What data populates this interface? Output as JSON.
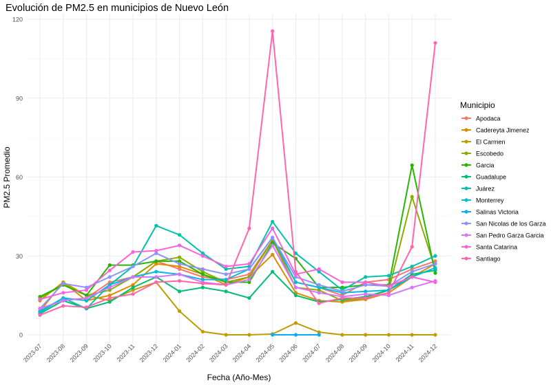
{
  "chart_data": {
    "type": "line",
    "title": "Evolución de PM2.5 en municipios de Nuevo León",
    "xlabel": "Fecha (Año-Mes)",
    "ylabel": "PM2.5 Promedio",
    "ylim": [
      0,
      120
    ],
    "yticks": [
      0,
      30,
      60,
      90,
      120
    ],
    "grid": true,
    "legend_title": "Municipio",
    "legend_position": "right",
    "categories": [
      "2023-07",
      "2023-08",
      "2023-09",
      "2023-10",
      "2023-11",
      "2023-12",
      "2024-01",
      "2024-02",
      "2024-03",
      "2024-04",
      "2024-05",
      "2024-06",
      "2024-07",
      "2024-08",
      "2024-09",
      "2024-10",
      "2024-11",
      "2024-12"
    ],
    "series": [
      {
        "name": "Apodaca",
        "color": "#F8766D",
        "values": [
          10,
          13,
          14,
          20,
          22,
          28,
          25,
          22,
          21,
          23,
          36,
          20,
          18,
          15,
          20,
          21,
          25,
          28
        ]
      },
      {
        "name": "Cadereyta Jimenez",
        "color": "#E18A00",
        "values": [
          9,
          20,
          13,
          15,
          19,
          27,
          26,
          23,
          19,
          22,
          30.5,
          16,
          13,
          12.5,
          13.5,
          16,
          22,
          27
        ]
      },
      {
        "name": "El Carmen",
        "color": "#BE9C00",
        "values": [
          13,
          20,
          15,
          13,
          17,
          20,
          9,
          1.2,
          0,
          0,
          0.3,
          4.5,
          1,
          0,
          0,
          0,
          0,
          0
        ]
      },
      {
        "name": "Escobedo",
        "color": "#8CAB00",
        "values": [
          14,
          19,
          15,
          17,
          22,
          28,
          29.5,
          24,
          20,
          22,
          36,
          18,
          17,
          13,
          14,
          17,
          52.5,
          25
        ]
      },
      {
        "name": "Garcia",
        "color": "#24B700",
        "values": [
          14.5,
          19,
          15,
          26.5,
          26.5,
          28,
          28,
          23,
          20,
          20,
          35,
          29,
          18,
          18,
          19,
          19,
          64.5,
          23.5
        ]
      },
      {
        "name": "Guadalupe",
        "color": "#00BE70",
        "values": [
          8,
          13,
          10,
          12.5,
          18,
          22,
          16.5,
          18,
          16.5,
          14,
          24,
          15,
          12.5,
          13.5,
          14.5,
          17,
          23,
          24.5
        ]
      },
      {
        "name": "Juárez",
        "color": "#00C1AB",
        "values": [
          9,
          14,
          10,
          19,
          26,
          41.5,
          38,
          31,
          25,
          26,
          43,
          31,
          24,
          17,
          22,
          22.5,
          26,
          30
        ]
      },
      {
        "name": "Monterrey",
        "color": "#00BBDA",
        "values": [
          8.5,
          14,
          13,
          19,
          22,
          24,
          23,
          21,
          21,
          25,
          37,
          20,
          18,
          16,
          16.5,
          17,
          22,
          25.5
        ]
      },
      {
        "name": "Salinas Victoria",
        "color": "#00ACFC",
        "values": [
          null,
          null,
          null,
          null,
          null,
          null,
          null,
          null,
          null,
          null,
          0,
          0,
          0,
          null,
          null,
          null,
          null,
          null
        ]
      },
      {
        "name": "San Nicolas de los Garza",
        "color": "#8B93FF",
        "values": [
          10,
          19.5,
          18,
          22,
          26,
          31,
          27,
          25,
          23,
          25,
          37,
          22,
          19,
          16.5,
          19,
          18.5,
          24,
          27
        ]
      },
      {
        "name": "San Pedro Garza Garcia",
        "color": "#D575FE",
        "values": [
          10,
          13,
          14,
          18,
          22,
          22,
          23,
          20,
          19,
          21,
          34,
          18,
          16,
          14.5,
          15.5,
          15,
          18,
          20.5
        ]
      },
      {
        "name": "Santa Catarina",
        "color": "#F962DD",
        "values": [
          13.5,
          16,
          17,
          24.5,
          31.5,
          32,
          34,
          30,
          26,
          27,
          40.5,
          23,
          25,
          20,
          20,
          18.5,
          22,
          20
        ]
      },
      {
        "name": "Santiago",
        "color": "#FF65AC",
        "values": [
          7.5,
          11,
          10.5,
          14,
          15.5,
          20,
          20.5,
          19.5,
          19,
          40.5,
          115.5,
          24,
          12,
          14,
          14,
          16,
          33.5,
          111
        ]
      }
    ]
  }
}
